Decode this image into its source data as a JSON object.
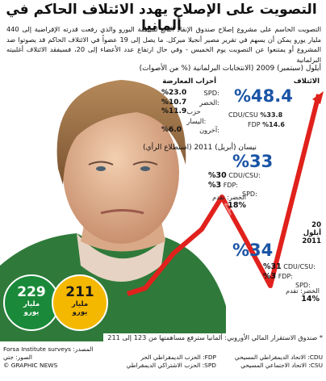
{
  "title": "التصويت على الإصلاح يهدد الائتلاف الحاكم في ألمانيا",
  "intro": "التصويت الحاسم على مشروع إصلاح صندوق الإنقاذ التابع لمنطقة اليورو والذي رفعت قدرته الإقراضية إلى 440 مليار يورو يمكن أن يسهم في تقرير مصير أنجيلا ميركل. ما يصل إلى 19 عضواً في الائتلاف الحاكم قد يصوتوا ضد المشروع أو يمتنعوا عن التصويت يوم الخميس - وفي حال ارتفاع عدد الأعضاء إلى 20، فسيفقد الائتلاف أغلبيته البرلمانية",
  "watermark": "© GRAPHIC NEWS",
  "sep2009": {
    "header": "أيلول (سبتمبر) 2009 (الانتخابات البرلمانية (% من الأصوات)",
    "coalition_label": "الائتلاف",
    "coalition_pct": "%48.4",
    "cdu_label": "CDU/CSU",
    "cdu_pct": "%33.8",
    "fdp_label": "FDP",
    "fdp_pct": "%14.6",
    "opp_label": "أحزاب المعارضة",
    "opp": [
      {
        "label": "SPD:",
        "pct": "%23.0"
      },
      {
        "label": "الخضر:",
        "pct": "%10.7"
      },
      {
        "label": "حزب اليسار:",
        "pct": "%11.9"
      },
      {
        "label": "آخرون:",
        "pct": "%6.0"
      }
    ]
  },
  "apr2011": {
    "header": "نيسان (أبريل) 2011 (استطلاع الرأي)",
    "big_pct": "%33",
    "cdu_label": "CDU/CSU:",
    "cdu_pct": "%30",
    "fdp_label": "FDP:",
    "fdp_pct": "%3",
    "spd_label": "SPD:",
    "green_label": "الخضر: تقدم",
    "green_pct": "%18"
  },
  "sep2011": {
    "header": "20 أيلول 2011",
    "big_pct": "%34",
    "cdu_label": "CDU/CSU:",
    "cdu_pct": "%31",
    "fdp_label": "FDP:",
    "fdp_pct": "%3",
    "spd_label": "SPD:",
    "green_label": "الخضر: تقدم",
    "green_pct": "%14"
  },
  "bubbles": {
    "left_value": "229",
    "left_unit": "مليار يورو",
    "right_value": "211",
    "right_unit": "مليار يورو",
    "left_color": "#1a8a3a",
    "right_color": "#f5b800"
  },
  "efsf_note": "* صندوق الاستقرار المالي الأوروبي: ألمانيا سترفع مساهمتها من 123 إلى 211 مليار يورو",
  "footer": {
    "cdu": "CDU: الاتحاد الديمقراطي المسيحي",
    "csu": "CSU: الاتحاد الاجتماعي المسيحي",
    "fdp": "FDP: الحزب الديمقراطي الحر",
    "spd": "SPD: الحزب الاشتراكي الديمقراطي",
    "source1": "المصدر: Forsa Institute surveys",
    "source2": "الصور: جتي",
    "credit": "© GRAPHIC NEWS"
  },
  "chart_data": {
    "type": "line",
    "x": [
      "Sep 2009",
      "Apr 2011",
      "20 Sep 2011"
    ],
    "series": [
      {
        "values": [
          48.4,
          33,
          34
        ]
      }
    ],
    "colors": {
      "line": "#e0211c",
      "accent": "#1a54a6"
    }
  }
}
